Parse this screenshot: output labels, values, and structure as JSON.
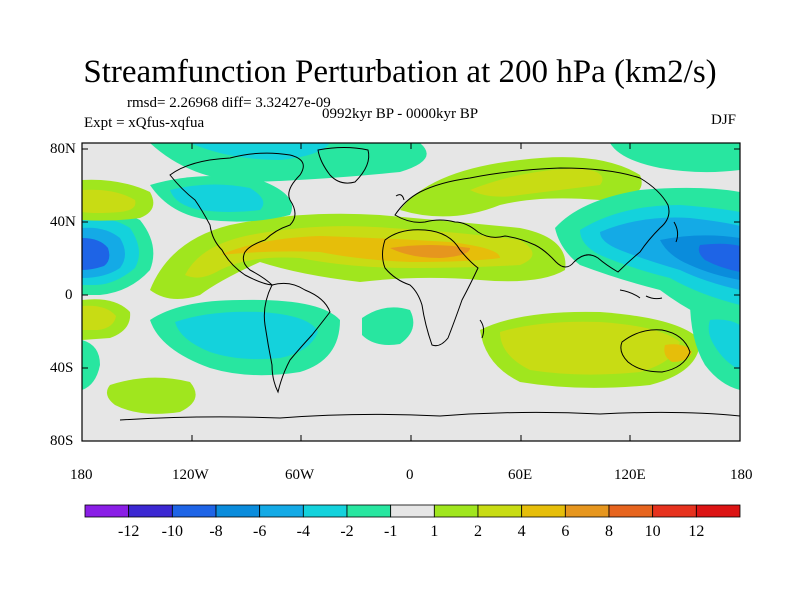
{
  "header": {
    "title": "Streamfunction Perturbation at 200 hPa (km2/s)",
    "stats": "rmsd= 2.26968 diff= 3.32427e-09",
    "experiment": "Expt = xQfus-xqfua",
    "period": "0992kyr BP - 0000kyr BP",
    "season": "DJF"
  },
  "map": {
    "lat_ticks": [
      "80N",
      "40N",
      "0",
      "40S",
      "80S"
    ],
    "lon_ticks": [
      "180",
      "120W",
      "60W",
      "0",
      "60E",
      "120E",
      "180"
    ]
  },
  "colorbar": {
    "labels": [
      "-12",
      "-10",
      "-8",
      "-6",
      "-4",
      "-2",
      "-1",
      "1",
      "2",
      "4",
      "6",
      "8",
      "10",
      "12"
    ],
    "colors": [
      "#8a1ee6",
      "#3c28d2",
      "#1e64e6",
      "#0a8cdc",
      "#14aae6",
      "#14d2dc",
      "#28e6a0",
      "#e6e6e6",
      "#a0e61e",
      "#c8dc14",
      "#e6be0a",
      "#e6961e",
      "#e6641e",
      "#e6321e",
      "#dc1414"
    ]
  }
}
